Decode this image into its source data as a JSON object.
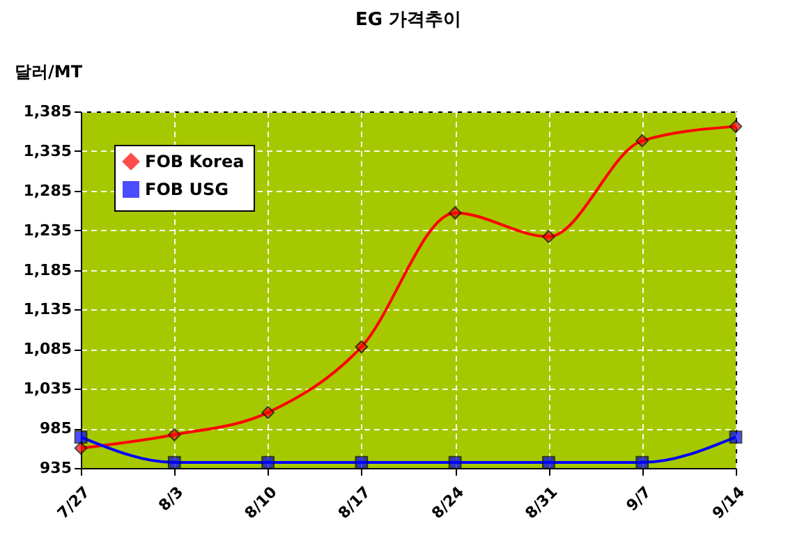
{
  "chart_data": {
    "type": "line",
    "title": "EG 가격추이",
    "ylabel": "달러/MT",
    "categories": [
      "7/27",
      "8/3",
      "8/10",
      "8/17",
      "8/24",
      "8/31",
      "9/7",
      "9/14"
    ],
    "series": [
      {
        "name": "FOB Korea",
        "color": "#ff0000",
        "marker": "diamond",
        "values": [
          960,
          977,
          1005,
          1088,
          1257,
          1227,
          1348,
          1366
        ]
      },
      {
        "name": "FOB USG",
        "color": "#0000ff",
        "marker": "square",
        "values": [
          974,
          942,
          942,
          942,
          942,
          942,
          942,
          974
        ]
      }
    ],
    "ylim": [
      935,
      1385
    ],
    "yticks": [
      935,
      985,
      {
        "value": 1035,
        "label": "1,035"
      },
      {
        "value": 1085,
        "label": "1,085"
      },
      {
        "value": 1135,
        "label": "1,135"
      },
      {
        "value": 1185,
        "label": "1,185"
      },
      {
        "value": 1235,
        "label": "1,235"
      },
      {
        "value": 1285,
        "label": "1,285"
      },
      {
        "value": 1335,
        "label": "1,335"
      },
      {
        "value": 1385,
        "label": "1,385"
      }
    ],
    "grid": true,
    "legend": "top left",
    "line_style": "solid"
  }
}
